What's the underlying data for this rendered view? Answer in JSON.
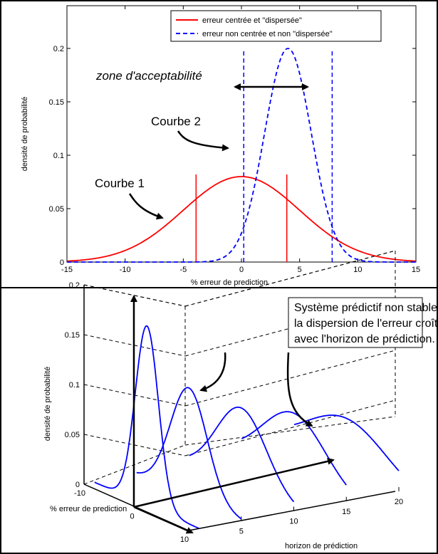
{
  "chart_data": [
    {
      "type": "line",
      "xlabel": "% erreur de prediction",
      "ylabel": "densité de probabilité",
      "xlim": [
        -15,
        15
      ],
      "ylim": [
        0,
        0.24
      ],
      "xticks": [
        "-15",
        "-10",
        "-5",
        "0",
        "5",
        "10",
        "15"
      ],
      "yticks": [
        "0",
        "0.05",
        "0.1",
        "0.15",
        "0.2"
      ],
      "grid": false,
      "legend_position": "top-right",
      "series": [
        {
          "name": "erreur centrée et \"dispersée\"",
          "color": "#ff0000",
          "style": "solid",
          "distribution": "normal",
          "mean": 0,
          "std": 5,
          "peak": 0.08
        },
        {
          "name": "erreur non centrée et non \"dispersée\"",
          "color": "#0000ff",
          "style": "dashed",
          "distribution": "normal",
          "mean": 4,
          "std": 2,
          "peak": 0.2
        }
      ],
      "markers": [
        {
          "color": "#ff0000",
          "style": "solid",
          "x": -3.9,
          "y_top": 0.082
        },
        {
          "color": "#ff0000",
          "style": "solid",
          "x": 3.9,
          "y_top": 0.082
        },
        {
          "color": "#0000ff",
          "style": "dashed",
          "x": 0.2,
          "y_top": 0.2
        },
        {
          "color": "#0000ff",
          "style": "dashed",
          "x": 7.8,
          "y_top": 0.2
        }
      ],
      "annotations": {
        "zone": "zone d'acceptabilité",
        "curve2": "Courbe 2",
        "curve1": "Courbe 1"
      }
    },
    {
      "type": "line",
      "projection": "3d",
      "xlabel": "% erreur de prediction",
      "ylabel": "horizon de prédiction",
      "zlabel": "densité de probabilité",
      "xlim": [
        -10,
        10
      ],
      "ylim": [
        0,
        20
      ],
      "zlim": [
        0,
        0.2
      ],
      "xticks": [
        "-10",
        "0",
        "10"
      ],
      "yticks": [
        "0",
        "5",
        "10",
        "15",
        "20"
      ],
      "zticks": [
        "0",
        "0.05",
        "0.1",
        "0.15",
        "0.2"
      ],
      "series_color": "#0000ff",
      "series": [
        {
          "horizon": 1,
          "mean": 0,
          "std": 2.2,
          "peak": 0.18
        },
        {
          "horizon": 5,
          "mean": 0,
          "std": 3.5,
          "peak": 0.11
        },
        {
          "horizon": 10,
          "mean": 0,
          "std": 4.8,
          "peak": 0.08
        },
        {
          "horizon": 15,
          "mean": 0,
          "std": 6.0,
          "peak": 0.065
        },
        {
          "horizon": 20,
          "mean": 0,
          "std": 7.5,
          "peak": 0.05
        }
      ],
      "annotation": [
        "Système prédictif non stable :",
        "la dispersion de l'erreur croît",
        "avec l'horizon de prédiction."
      ]
    }
  ]
}
